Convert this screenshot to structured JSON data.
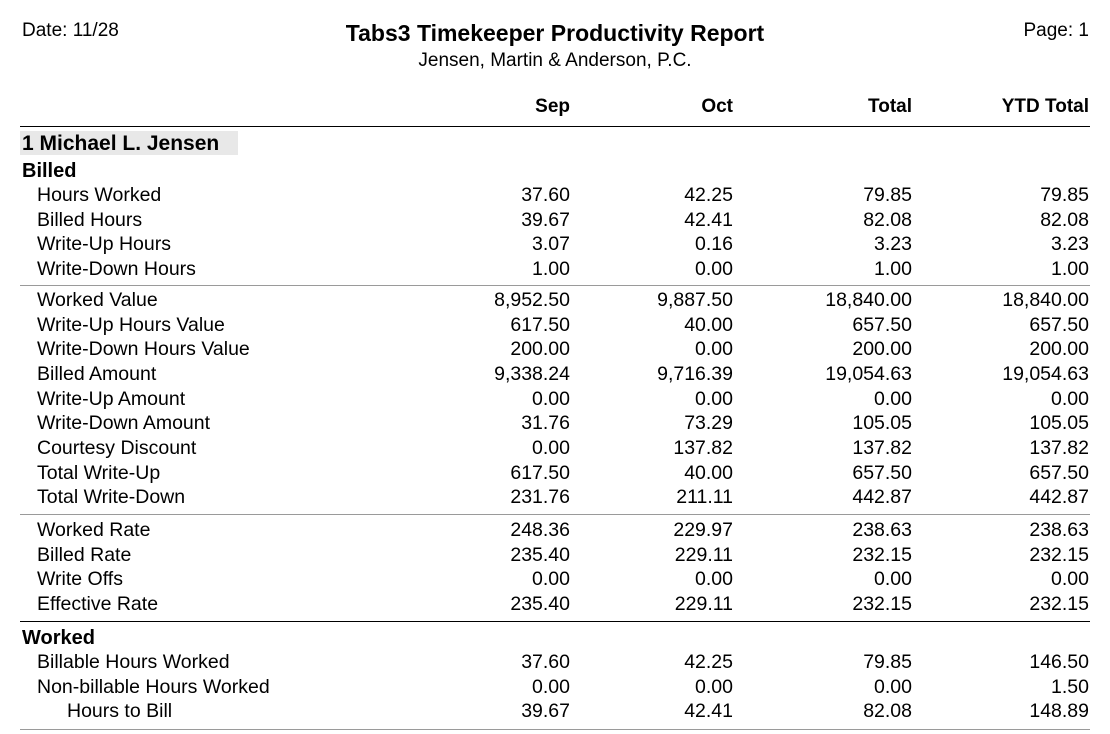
{
  "header": {
    "date": "Date: 11/28",
    "title": "Tabs3 Timekeeper Productivity Report",
    "subtitle": "Jensen, Martin & Anderson, P.C.",
    "page": "Page: 1"
  },
  "columns": [
    "Sep",
    "Oct",
    "Total",
    "YTD Total"
  ],
  "timekeeper": "1 Michael L. Jensen",
  "billed": {
    "heading": "Billed",
    "hours": [
      {
        "label": "Hours Worked",
        "sep": "37.60",
        "oct": "42.25",
        "total": "79.85",
        "ytd": "79.85"
      },
      {
        "label": "Billed Hours",
        "sep": "39.67",
        "oct": "42.41",
        "total": "82.08",
        "ytd": "82.08"
      },
      {
        "label": "Write-Up Hours",
        "sep": "3.07",
        "oct": "0.16",
        "total": "3.23",
        "ytd": "3.23"
      },
      {
        "label": "Write-Down Hours",
        "sep": "1.00",
        "oct": "0.00",
        "total": "1.00",
        "ytd": "1.00"
      }
    ],
    "values": [
      {
        "label": "Worked Value",
        "sep": "8,952.50",
        "oct": "9,887.50",
        "total": "18,840.00",
        "ytd": "18,840.00"
      },
      {
        "label": "Write-Up Hours Value",
        "sep": "617.50",
        "oct": "40.00",
        "total": "657.50",
        "ytd": "657.50"
      },
      {
        "label": "Write-Down Hours Value",
        "sep": "200.00",
        "oct": "0.00",
        "total": "200.00",
        "ytd": "200.00"
      },
      {
        "label": "Billed Amount",
        "sep": "9,338.24",
        "oct": "9,716.39",
        "total": "19,054.63",
        "ytd": "19,054.63"
      },
      {
        "label": "Write-Up Amount",
        "sep": "0.00",
        "oct": "0.00",
        "total": "0.00",
        "ytd": "0.00"
      },
      {
        "label": "Write-Down Amount",
        "sep": "31.76",
        "oct": "73.29",
        "total": "105.05",
        "ytd": "105.05"
      },
      {
        "label": "Courtesy Discount",
        "sep": "0.00",
        "oct": "137.82",
        "total": "137.82",
        "ytd": "137.82"
      },
      {
        "label": "Total Write-Up",
        "sep": "617.50",
        "oct": "40.00",
        "total": "657.50",
        "ytd": "657.50"
      },
      {
        "label": "Total Write-Down",
        "sep": "231.76",
        "oct": "211.11",
        "total": "442.87",
        "ytd": "442.87"
      }
    ],
    "rates": [
      {
        "label": "Worked Rate",
        "sep": "248.36",
        "oct": "229.97",
        "total": "238.63",
        "ytd": "238.63"
      },
      {
        "label": "Billed Rate",
        "sep": "235.40",
        "oct": "229.11",
        "total": "232.15",
        "ytd": "232.15"
      },
      {
        "label": "Write Offs",
        "sep": "0.00",
        "oct": "0.00",
        "total": "0.00",
        "ytd": "0.00"
      },
      {
        "label": "Effective Rate",
        "sep": "235.40",
        "oct": "229.11",
        "total": "232.15",
        "ytd": "232.15"
      }
    ]
  },
  "worked": {
    "heading": "Worked",
    "rows": [
      {
        "label": "Billable Hours Worked",
        "sep": "37.60",
        "oct": "42.25",
        "total": "79.85",
        "ytd": "146.50"
      },
      {
        "label": "Non-billable Hours Worked",
        "sep": "0.00",
        "oct": "0.00",
        "total": "0.00",
        "ytd": "1.50"
      },
      {
        "label": "Hours to Bill",
        "sep": "39.67",
        "oct": "42.41",
        "total": "82.08",
        "ytd": "148.89"
      }
    ]
  }
}
